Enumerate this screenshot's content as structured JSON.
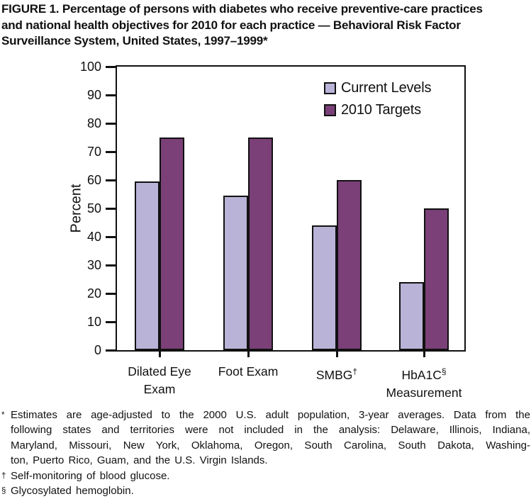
{
  "figure_title": {
    "lines": [
      "FIGURE 1. Percentage of persons with diabetes who receive preventive-care practices",
      "and national health objectives for 2010 for each practice — Behavioral Risk Factor",
      "Surveillance System, United States, 1997–1999*"
    ]
  },
  "chart_data": {
    "type": "bar",
    "title": "FIGURE 1. Percentage of persons with diabetes who receive preventive-care practices and national health objectives for 2010 for each practice — Behavioral Risk Factor Surveillance System, United States, 1997–1999*",
    "xlabel": "",
    "ylabel": "Percent",
    "ylim": [
      0,
      100
    ],
    "yticks": [
      0,
      10,
      20,
      30,
      40,
      50,
      60,
      70,
      80,
      90,
      100
    ],
    "grid": false,
    "legend_position": "top-right-inside",
    "categories": [
      "Dilated Eye Exam",
      "Foot Exam",
      "SMBG",
      "HbA1C Measurement"
    ],
    "category_labels": [
      {
        "lines": [
          "Dilated Eye",
          "Exam"
        ]
      },
      {
        "lines": [
          "Foot Exam"
        ]
      },
      {
        "lines": [
          "SMBG^†"
        ]
      },
      {
        "lines": [
          "HbA1C^§",
          "Measurement"
        ]
      }
    ],
    "series": [
      {
        "name": "Current Levels",
        "color": "#b9b3d7",
        "values": [
          59.5,
          54.5,
          44,
          24
        ]
      },
      {
        "name": "2010 Targets",
        "color": "#7a4077",
        "values": [
          75,
          75,
          60,
          50
        ]
      }
    ]
  },
  "footnotes": [
    {
      "marker": "*",
      "justify": true,
      "lines": [
        "Estimates are age-adjusted to the 2000 U.S. adult population, 3-year averages. Data from the",
        "following states and territories were not included in the analysis: Delaware, Illinois, Indiana,",
        "Maryland, Missouri, New York, Oklahoma, Oregon, South Carolina, South Dakota, Washing-",
        "ton, Puerto Rico, Guam, and the U.S. Virgin Islands."
      ]
    },
    {
      "marker": "†",
      "justify": false,
      "lines": [
        "Self-monitoring of blood glucose."
      ]
    },
    {
      "marker": "§",
      "justify": false,
      "lines": [
        "Glycosylated hemoglobin."
      ]
    }
  ],
  "colors": {
    "current_levels": "#b9b3d7",
    "targets_2010": "#7a4077",
    "axis": "#111111",
    "background": "#ffffff"
  }
}
